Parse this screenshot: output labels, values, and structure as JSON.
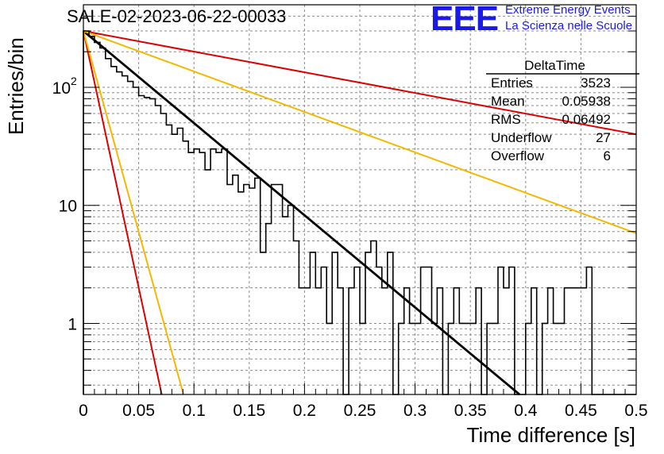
{
  "header": {
    "title": "SALE-02-2023-06-22-00033",
    "logo_text": "EEE",
    "logo_line1": "Extreme Energy Events",
    "logo_line2": "La Scienza nelle Scuole"
  },
  "stats": {
    "name": "DeltaTime",
    "rows": [
      {
        "label": "Entries",
        "value": "3523"
      },
      {
        "label": "Mean",
        "value": "0.05938"
      },
      {
        "label": "RMS",
        "value": "0.06492"
      },
      {
        "label": "Underflow",
        "value": "27"
      },
      {
        "label": "Overflow",
        "value": "6"
      }
    ]
  },
  "colors": {
    "histogram": "#000000",
    "fit": "#000000",
    "red": "#dd0000",
    "orange": "#f5b800",
    "logo": "#1a1ae6"
  },
  "chart_data": {
    "type": "line",
    "title": "SALE-02-2023-06-22-00033",
    "xlabel": "Time difference [s]",
    "ylabel": "Entries/bin",
    "xlim": [
      0,
      0.5
    ],
    "ylim": [
      0.25,
      500
    ],
    "yscale": "log",
    "grid": true,
    "legend": "top-right stats box",
    "x_ticks": [
      "0",
      "0.05",
      "0.1",
      "0.15",
      "0.2",
      "0.25",
      "0.3",
      "0.35",
      "0.4",
      "0.45",
      "0.5"
    ],
    "y_ticks": [
      "1",
      "10",
      "10^2"
    ],
    "bin_width": 0.005,
    "histogram": [
      300,
      270,
      240,
      215,
      175,
      150,
      135,
      125,
      112,
      100,
      85,
      82,
      80,
      70,
      60,
      48,
      40,
      45,
      35,
      28,
      30,
      28,
      20,
      30,
      28,
      30,
      15,
      18,
      13,
      15,
      14,
      17,
      4,
      7,
      15,
      15,
      8,
      10,
      5,
      2,
      2,
      4,
      2,
      3,
      1,
      4,
      2,
      0.1,
      2,
      3,
      1,
      4,
      5,
      3,
      2,
      4,
      0.1,
      1,
      2,
      1,
      1,
      3,
      3,
      1,
      2,
      0.1,
      1,
      2,
      1,
      1,
      1,
      2,
      0.1,
      1,
      1,
      3,
      2,
      3,
      0.1,
      0.1,
      1,
      2,
      0.1,
      1,
      2,
      1,
      1,
      2,
      2,
      2,
      2,
      3,
      0.1,
      0.1,
      0.1,
      0.1,
      0.1,
      0.1,
      0.1,
      0.1
    ],
    "series": [
      {
        "color": "#000000",
        "x": [
          0,
          0.3945
        ],
        "y": [
          300,
          0.25
        ]
      },
      {
        "color": "#dd0000",
        "x": [
          0,
          0.5
        ],
        "y": [
          300,
          40
        ]
      },
      {
        "color": "#f5b800",
        "x": [
          0,
          0.5
        ],
        "y": [
          300,
          5.8
        ]
      },
      {
        "color": "#dd0000",
        "x": [
          0,
          0.0708
        ],
        "y": [
          300,
          0.25
        ]
      },
      {
        "color": "#f5b800",
        "x": [
          0,
          0.0905
        ],
        "y": [
          300,
          0.25
        ]
      }
    ]
  }
}
